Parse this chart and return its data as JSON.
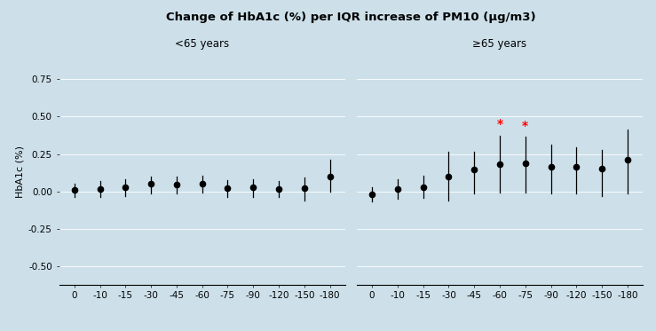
{
  "title": "Change of HbA1c (%) per IQR increase of PM10 (μg/m3)",
  "ylabel": "HbA1c (%)",
  "background_color": "#cde0ea",
  "group1_label": "<65 years",
  "group2_label": "≥65 years",
  "x_labels": [
    "0",
    "-10",
    "-15",
    "-30",
    "-45",
    "-60",
    "-75",
    "-90",
    "-120",
    "-150",
    "-180"
  ],
  "group1": {
    "centers": [
      0.01,
      0.02,
      0.03,
      0.055,
      0.048,
      0.055,
      0.025,
      0.03,
      0.02,
      0.022,
      0.1
    ],
    "upper": [
      0.055,
      0.068,
      0.085,
      0.098,
      0.098,
      0.108,
      0.078,
      0.085,
      0.072,
      0.095,
      0.215
    ],
    "lower": [
      -0.038,
      -0.038,
      -0.028,
      -0.01,
      -0.01,
      -0.005,
      -0.038,
      -0.038,
      -0.038,
      -0.06,
      0.0
    ]
  },
  "group2": {
    "centers": [
      -0.02,
      0.02,
      0.032,
      0.1,
      0.15,
      0.185,
      0.19,
      0.165,
      0.165,
      0.155,
      0.21
    ],
    "upper": [
      0.028,
      0.082,
      0.108,
      0.265,
      0.265,
      0.375,
      0.365,
      0.315,
      0.295,
      0.275,
      0.415
    ],
    "lower": [
      -0.068,
      -0.048,
      -0.04,
      -0.06,
      -0.01,
      -0.005,
      -0.005,
      -0.01,
      -0.01,
      -0.03,
      -0.01
    ]
  },
  "significant_indices": [
    5,
    6
  ],
  "ylim": [
    -0.62,
    0.88
  ],
  "yticks": [
    -0.5,
    -0.25,
    0.0,
    0.25,
    0.5,
    0.75
  ]
}
